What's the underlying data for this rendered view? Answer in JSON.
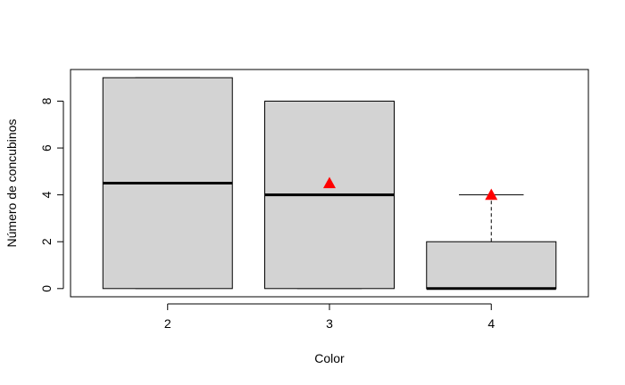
{
  "chart_data": {
    "type": "boxplot",
    "title": "",
    "xlabel": "Color",
    "ylabel": "Número de concubinos",
    "ylim": [
      -0.35,
      9.35
    ],
    "yticks": [
      0,
      2,
      4,
      6,
      8
    ],
    "categories": [
      "2",
      "3",
      "4"
    ],
    "boxes": [
      {
        "category": "2",
        "min": 0,
        "q1": 0,
        "median": 4.5,
        "q3": 9,
        "max": 9,
        "mean": null
      },
      {
        "category": "3",
        "min": 0,
        "q1": 0,
        "median": 4,
        "q3": 8,
        "max": 8,
        "mean": 4.5
      },
      {
        "category": "4",
        "min": 0,
        "q1": 0,
        "median": 0,
        "q3": 2,
        "max": 4,
        "mean": 4
      }
    ],
    "box_fill": "#d3d3d3",
    "mean_marker_color": "#ff0000",
    "mean_marker_shape": "triangle"
  }
}
